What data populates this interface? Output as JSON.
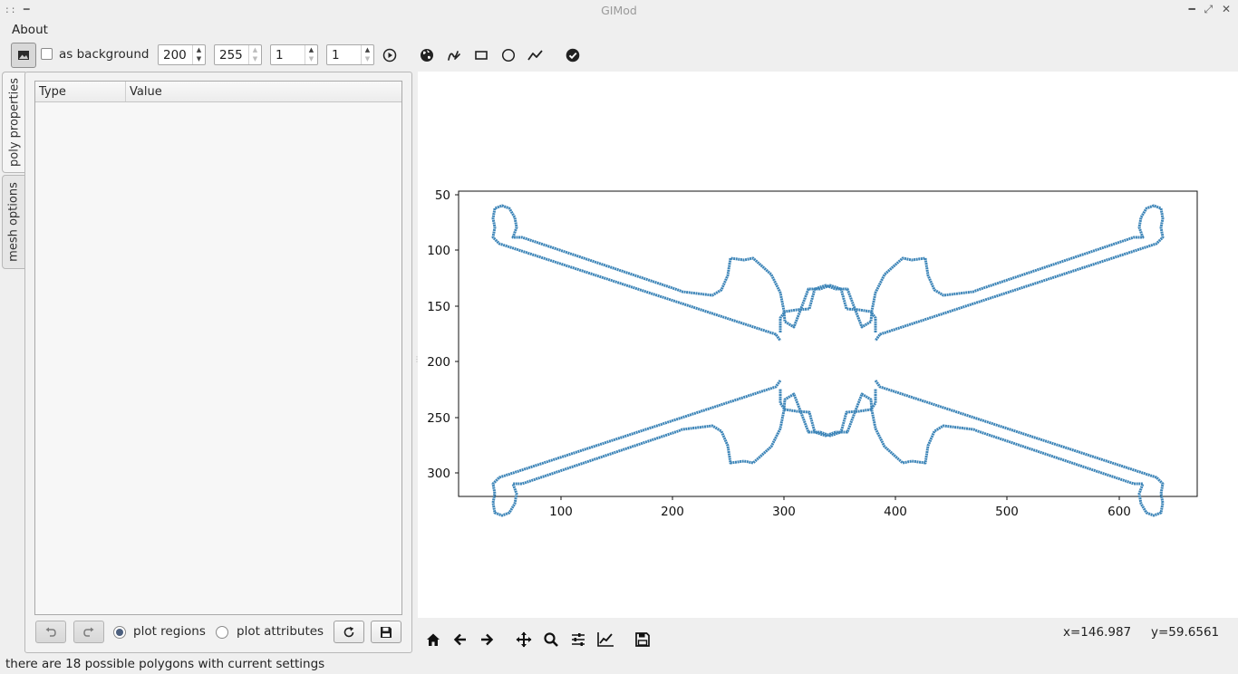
{
  "window": {
    "title": "GIMod"
  },
  "menu": {
    "about_label": "About"
  },
  "toolbar": {
    "image_button_icon": "image-icon",
    "as_background_label": "as background",
    "as_background_checked": false,
    "spin1_value": "200",
    "spin2_value": "255",
    "spin3_value": "1",
    "spin4_value": "1",
    "icons": [
      "play-icon",
      "globe-icon",
      "freehand-icon",
      "rectangle-icon",
      "circle-icon",
      "polyline-icon",
      "check-icon"
    ]
  },
  "sidetabs": {
    "tab1": "poly properties",
    "tab2": "mesh options"
  },
  "table": {
    "col_type": "Type",
    "col_value": "Value"
  },
  "left_bottom": {
    "plot_regions_label": "plot regions",
    "plot_attributes_label": "plot attributes",
    "plot_regions_selected": true,
    "buttons": [
      "undo-icon",
      "redo-icon",
      "refresh-icon",
      "save-icon"
    ]
  },
  "plot": {
    "x_ticks": [
      "100",
      "200",
      "300",
      "400",
      "500",
      "600"
    ],
    "y_ticks": [
      "50",
      "100",
      "150",
      "200",
      "250",
      "300"
    ],
    "line_color": "#3d85b8"
  },
  "navbar": {
    "icons": [
      "home-icon",
      "back-icon",
      "forward-icon",
      "pan-icon",
      "zoom-icon",
      "configure-subplots-icon",
      "edit-axis-icon",
      "save-figure-icon"
    ],
    "x_readout": "x=146.987",
    "y_readout": "y=59.6561"
  },
  "status": {
    "message": "there are 18 possible polygons with current settings"
  }
}
